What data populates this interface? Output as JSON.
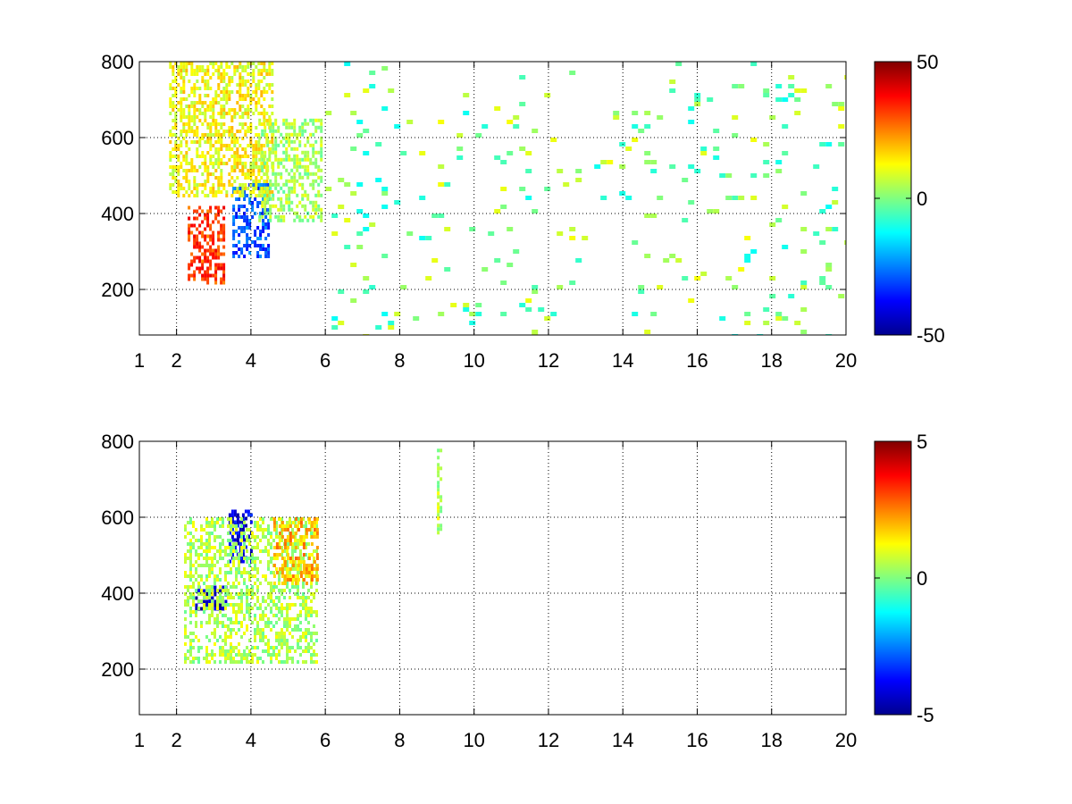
{
  "chart_data": [
    {
      "type": "heatmap",
      "xlim": [
        1,
        20
      ],
      "ylim": [
        80,
        800
      ],
      "x_ticks": [
        1,
        2,
        4,
        6,
        8,
        10,
        12,
        14,
        16,
        18,
        20
      ],
      "x_tick_labels": [
        "1",
        "2",
        "4",
        "6",
        "8",
        "10",
        "12",
        "14",
        "16",
        "18",
        "20"
      ],
      "x_gridlines": [
        2,
        4,
        6,
        8,
        10,
        12,
        14,
        16,
        18,
        20
      ],
      "y_ticks": [
        200,
        400,
        600,
        800
      ],
      "y_tick_labels": [
        "200",
        "400",
        "600",
        "800"
      ],
      "grid": true,
      "grid_style": "dotted",
      "colormap": "jet",
      "clim": [
        -50,
        50
      ],
      "colorbar": {
        "placement": "right",
        "ticks": [
          50,
          0,
          -50
        ],
        "tick_labels": [
          "50",
          "0",
          "-50"
        ]
      },
      "regions": [
        {
          "x": [
            2.3,
            3.3
          ],
          "y": [
            220,
            420
          ],
          "value": 32
        },
        {
          "x": [
            3.5,
            4.5
          ],
          "y": [
            290,
            480
          ],
          "value": -30
        },
        {
          "x": [
            1.8,
            4.6
          ],
          "y": [
            450,
            800
          ],
          "value": 12
        },
        {
          "x": [
            4.2,
            5.9
          ],
          "y": [
            380,
            650
          ],
          "value": 4
        },
        {
          "x": [
            6.0,
            20.0
          ],
          "y": [
            80,
            800
          ],
          "value": 0
        }
      ]
    },
    {
      "type": "heatmap",
      "xlim": [
        1,
        20
      ],
      "ylim": [
        80,
        800
      ],
      "x_ticks": [
        1,
        2,
        4,
        6,
        8,
        10,
        12,
        14,
        16,
        18,
        20
      ],
      "x_tick_labels": [
        "1",
        "2",
        "4",
        "6",
        "8",
        "10",
        "12",
        "14",
        "16",
        "18",
        "20"
      ],
      "x_gridlines": [
        2,
        4,
        6,
        8,
        10,
        12,
        14,
        16,
        18,
        20
      ],
      "y_ticks": [
        200,
        400,
        600,
        800
      ],
      "y_tick_labels": [
        "200",
        "400",
        "600",
        "800"
      ],
      "grid": true,
      "grid_style": "dotted",
      "colormap": "jet",
      "clim": [
        -5,
        5
      ],
      "colorbar": {
        "placement": "right",
        "ticks": [
          5,
          0,
          -5
        ],
        "tick_labels": [
          "5",
          "0",
          "-5"
        ]
      },
      "regions": [
        {
          "x": [
            2.5,
            3.3
          ],
          "y": [
            360,
            420
          ],
          "value": -4.5
        },
        {
          "x": [
            3.4,
            4.0
          ],
          "y": [
            480,
            620
          ],
          "value": -4
        },
        {
          "x": [
            2.2,
            5.8
          ],
          "y": [
            220,
            600
          ],
          "value": 0.5
        },
        {
          "x": [
            4.6,
            5.8
          ],
          "y": [
            430,
            600
          ],
          "value": 2
        },
        {
          "x": [
            9.0,
            9.1
          ],
          "y": [
            560,
            790
          ],
          "value": 0.5
        }
      ]
    }
  ]
}
